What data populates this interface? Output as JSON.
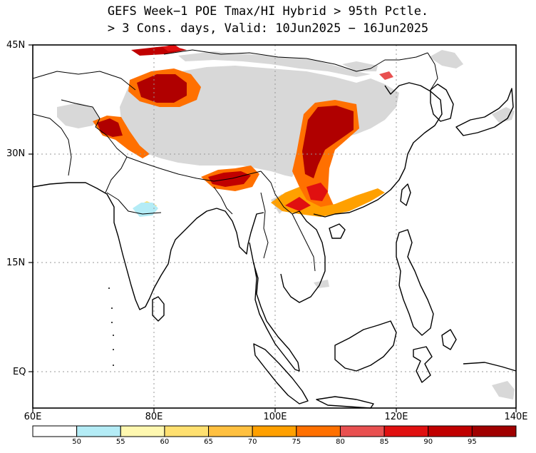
{
  "title_line1": "GEFS Week−1 POE Tmax/HI Hybrid > 95th Pctle.",
  "title_line2": "> 3 Cons. days, Valid: 10Jun2025 − 16Jun2025",
  "axes": {
    "lat_labels": [
      "45N",
      "30N",
      "15N",
      "EQ"
    ],
    "lon_labels": [
      "60E",
      "80E",
      "100E",
      "120E",
      "140E"
    ]
  },
  "colorbar": {
    "labels": [
      "50",
      "55",
      "60",
      "65",
      "70",
      "75",
      "80",
      "85",
      "90",
      "95"
    ],
    "colors": [
      "#ffffff",
      "#b4ecf6",
      "#fff8b0",
      "#ffe070",
      "#ffc040",
      "#ffa000",
      "#ff7000",
      "#e85050",
      "#e01010",
      "#c00000",
      "#a00000"
    ]
  },
  "colors": {
    "land_gray": "#d8d8d8",
    "grid": "#999999"
  }
}
